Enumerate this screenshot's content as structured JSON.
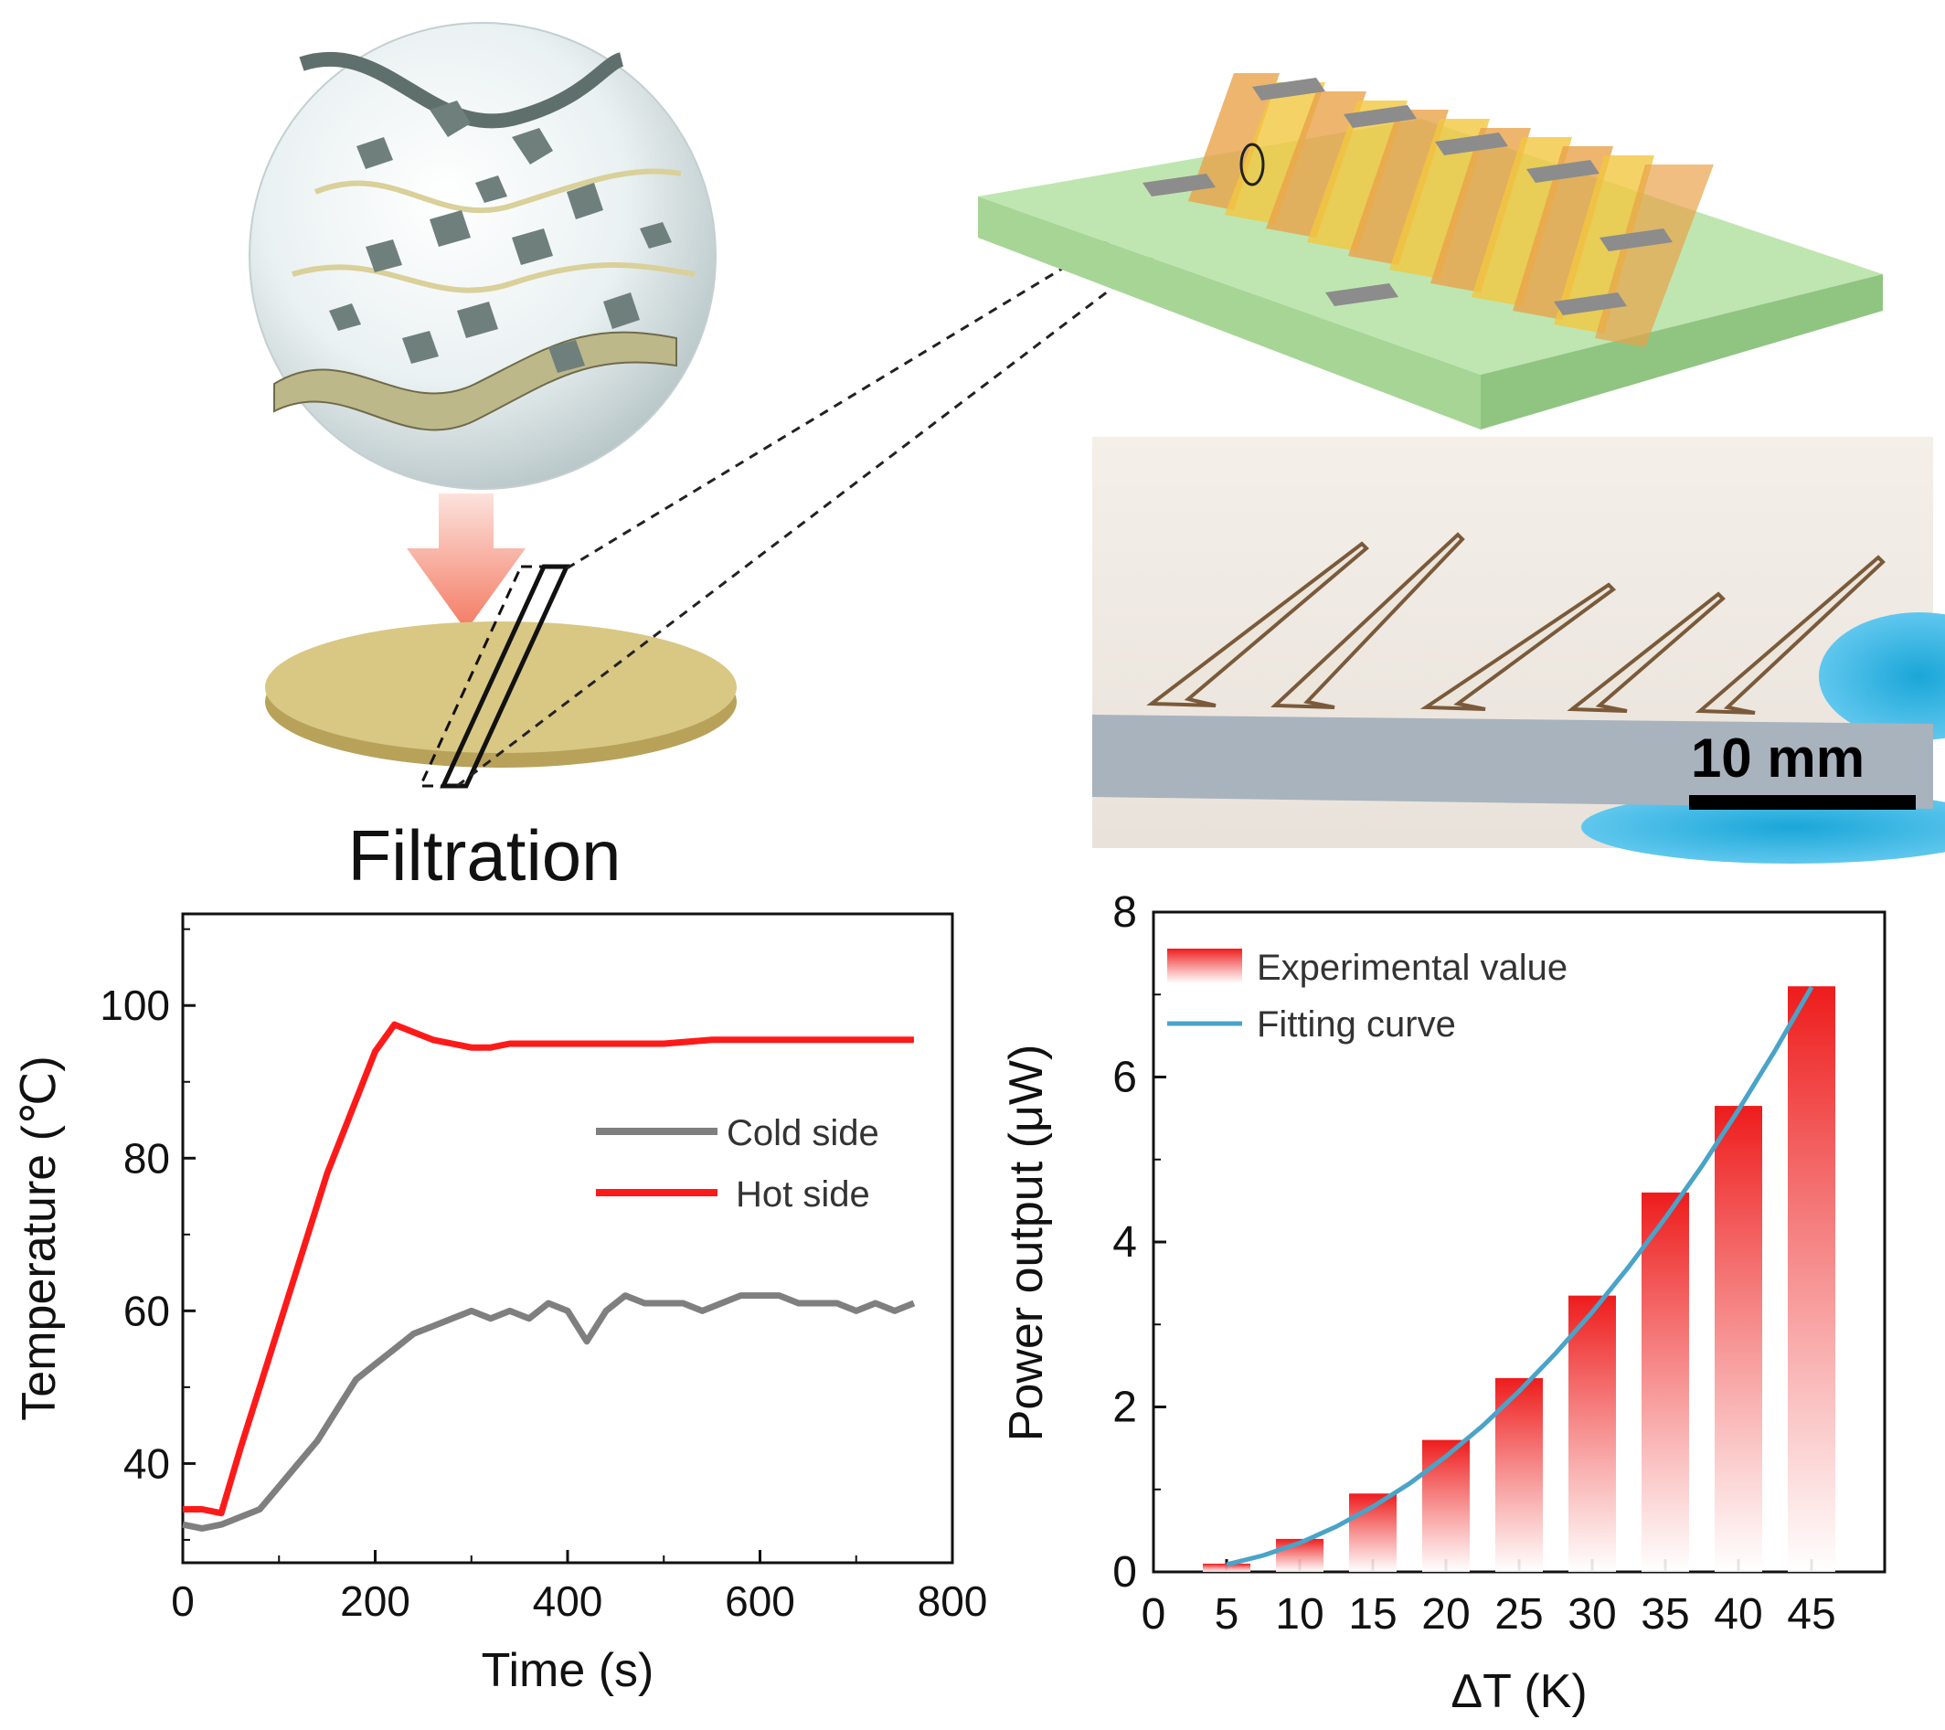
{
  "figure": {
    "filtration_label": "Filtration",
    "scale_bar_label": "10 mm"
  },
  "colors": {
    "hot": "#ff1a1a",
    "cold": "#7f7f7f",
    "fit": "#4aa3c8",
    "bar_top": "#ee1c1c",
    "substrate": "#bfe6b0",
    "leg_p": "#e8a24a",
    "leg_n": "#f2c740",
    "electrode": "#8c8c8c",
    "membrane": "#d9c784",
    "arrow": "#f58b78"
  },
  "chart_data": [
    {
      "type": "line",
      "xlabel": "Time (s)",
      "ylabel": "Temperature (℃)",
      "xlim": [
        0,
        800
      ],
      "ylim": [
        27,
        112
      ],
      "xticks": [
        "0",
        "200",
        "400",
        "600",
        "800"
      ],
      "yticks": [
        "40",
        "60",
        "80",
        "100"
      ],
      "legend_position": "center-right",
      "series": [
        {
          "name": "Cold side",
          "color": "#7f7f7f",
          "x": [
            0,
            20,
            40,
            60,
            80,
            100,
            120,
            140,
            160,
            180,
            200,
            220,
            240,
            260,
            280,
            300,
            320,
            340,
            360,
            380,
            400,
            420,
            440,
            460,
            480,
            500,
            520,
            540,
            560,
            580,
            600,
            620,
            640,
            660,
            680,
            700,
            720,
            740,
            760
          ],
          "y": [
            32,
            31.5,
            32,
            33,
            34,
            37,
            40,
            43,
            47,
            51,
            53,
            55,
            57,
            58,
            59,
            60,
            59,
            60,
            59,
            61,
            60,
            56,
            60,
            62,
            61,
            61,
            61,
            60,
            61,
            62,
            62,
            62,
            61,
            61,
            61,
            60,
            61,
            60,
            61
          ]
        },
        {
          "name": "Hot side",
          "color": "#ff1a1a",
          "x": [
            0,
            20,
            40,
            60,
            100,
            150,
            200,
            220,
            240,
            260,
            280,
            300,
            320,
            340,
            400,
            450,
            500,
            550,
            600,
            650,
            700,
            760
          ],
          "y": [
            34,
            34,
            33.5,
            42,
            58,
            78,
            94,
            97.5,
            96.5,
            95.5,
            95,
            94.5,
            94.5,
            95,
            95,
            95,
            95,
            95.5,
            95.5,
            95.5,
            95.5,
            95.5
          ]
        }
      ]
    },
    {
      "type": "bar",
      "xlabel": "ΔT (K)",
      "ylabel": "Power output (μW)",
      "xlim": [
        0,
        50
      ],
      "ylim": [
        0,
        8
      ],
      "xticks": [
        "0",
        "5",
        "10",
        "15",
        "20",
        "25",
        "30",
        "35",
        "40",
        "45"
      ],
      "yticks": [
        "0",
        "2",
        "4",
        "6",
        "8"
      ],
      "legend_position": "top-left",
      "categories": [
        "5",
        "10",
        "15",
        "20",
        "25",
        "30",
        "35",
        "40",
        "45"
      ],
      "series": [
        {
          "name": "Experimental value",
          "style": "bar",
          "x": [
            5,
            10,
            15,
            20,
            25,
            30,
            35,
            40,
            45
          ],
          "values": [
            0.1,
            0.4,
            0.95,
            1.6,
            2.35,
            3.35,
            4.6,
            5.65,
            7.1
          ]
        },
        {
          "name": "Fitting curve",
          "style": "line",
          "x": [
            5,
            7.5,
            10,
            12.5,
            15,
            17.5,
            20,
            22.5,
            25,
            27.5,
            30,
            32.5,
            35,
            37.5,
            40,
            42.5,
            45
          ],
          "values": [
            0.09,
            0.2,
            0.35,
            0.55,
            0.79,
            1.07,
            1.4,
            1.77,
            2.19,
            2.65,
            3.15,
            3.7,
            4.29,
            4.92,
            5.6,
            6.32,
            7.09
          ]
        }
      ]
    }
  ]
}
